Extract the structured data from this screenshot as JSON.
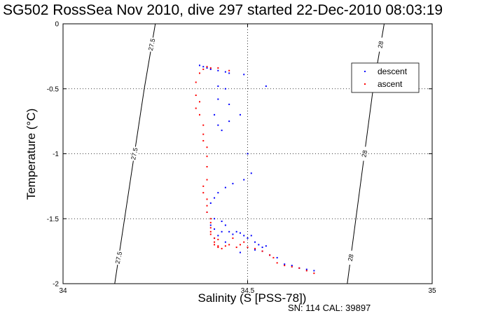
{
  "figure": {
    "title": "SG502 RossSea Nov 2010, dive 297 started 22-Dec-2010 08:03:19",
    "footer": "SN: 114  CAL: 39897"
  },
  "chart_data": {
    "type": "scatter",
    "title": "SG502 RossSea Nov 2010, dive 297 started 22-Dec-2010 08:03:19",
    "xlabel": "Salinity (S [PSS-78])",
    "ylabel": "Temperature (°C)",
    "xlim": [
      34,
      35
    ],
    "ylim": [
      -2,
      0
    ],
    "x_ticks": [
      34,
      34.5,
      35
    ],
    "x_tick_labels": [
      "34",
      "34.5",
      "35"
    ],
    "y_ticks": [
      -2,
      -1.5,
      -1,
      -0.5,
      0
    ],
    "y_tick_labels": [
      "-2",
      "-1.5",
      "-1",
      "-0.5",
      "0"
    ],
    "grid": true,
    "legend_position": "top-right",
    "series": [
      {
        "name": "descent",
        "color": "#0000ff",
        "x": [
          34.37,
          34.38,
          34.39,
          34.4,
          34.42,
          34.44,
          34.45,
          34.49,
          34.55,
          34.42,
          34.44,
          34.42,
          34.45,
          34.41,
          34.42,
          34.43,
          34.45,
          34.48,
          34.5,
          34.51,
          34.49,
          34.46,
          34.44,
          34.42,
          34.41,
          34.4,
          34.39,
          34.41,
          34.43,
          34.4,
          34.41,
          34.43,
          34.44,
          34.42,
          34.41,
          34.44,
          34.45,
          34.46,
          34.47,
          34.48,
          34.49,
          34.5,
          34.51,
          34.52,
          34.53,
          34.54,
          34.55,
          34.54,
          34.52,
          34.5,
          34.48,
          34.56,
          34.58,
          34.6,
          34.62,
          34.64,
          34.66,
          34.68
        ],
        "y": [
          -0.32,
          -0.33,
          -0.34,
          -0.35,
          -0.36,
          -0.37,
          -0.38,
          -0.39,
          -0.48,
          -0.48,
          -0.5,
          -0.58,
          -0.62,
          -0.7,
          -0.78,
          -0.82,
          -0.75,
          -0.7,
          -1.0,
          -1.15,
          -1.2,
          -1.23,
          -1.26,
          -1.3,
          -1.34,
          -1.38,
          -1.45,
          -1.5,
          -1.52,
          -1.55,
          -1.58,
          -1.6,
          -1.55,
          -1.63,
          -1.65,
          -1.68,
          -1.6,
          -1.62,
          -1.6,
          -1.61,
          -1.63,
          -1.65,
          -1.63,
          -1.68,
          -1.7,
          -1.72,
          -1.71,
          -1.75,
          -1.74,
          -1.72,
          -1.76,
          -1.78,
          -1.8,
          -1.85,
          -1.86,
          -1.88,
          -1.89,
          -1.9
        ]
      },
      {
        "name": "ascent",
        "color": "#ff0000",
        "x": [
          34.36,
          34.37,
          34.38,
          34.39,
          34.4,
          34.42,
          34.45,
          34.36,
          34.36,
          34.37,
          34.37,
          34.38,
          34.38,
          34.38,
          34.39,
          34.39,
          34.39,
          34.39,
          34.38,
          34.38,
          34.39,
          34.39,
          34.39,
          34.4,
          34.4,
          34.4,
          34.4,
          34.4,
          34.41,
          34.41,
          34.41,
          34.42,
          34.42,
          34.42,
          34.43,
          34.44,
          34.45,
          34.46,
          34.47,
          34.48,
          34.49,
          34.5,
          34.52,
          34.54,
          34.56,
          34.57,
          34.58,
          34.6,
          34.62,
          34.64,
          34.66,
          34.68
        ],
        "y": [
          -0.45,
          -0.38,
          -0.35,
          -0.33,
          -0.34,
          -0.34,
          -0.36,
          -0.55,
          -0.65,
          -0.6,
          -0.7,
          -0.78,
          -0.85,
          -0.9,
          -0.95,
          -1.02,
          -1.1,
          -1.2,
          -1.25,
          -1.3,
          -1.35,
          -1.4,
          -1.45,
          -1.5,
          -1.53,
          -1.57,
          -1.6,
          -1.62,
          -1.65,
          -1.68,
          -1.7,
          -1.72,
          -1.66,
          -1.71,
          -1.73,
          -1.71,
          -1.7,
          -1.65,
          -1.72,
          -1.7,
          -1.68,
          -1.72,
          -1.73,
          -1.75,
          -1.78,
          -1.8,
          -1.84,
          -1.86,
          -1.87,
          -1.88,
          -1.9,
          -1.92
        ]
      }
    ],
    "density_contours": [
      {
        "label": "27.5",
        "points": [
          [
            34.14,
            -2
          ],
          [
            34.22,
            -0.5
          ],
          [
            34.25,
            0
          ]
        ]
      },
      {
        "label": "28",
        "points": [
          [
            34.77,
            -2
          ],
          [
            34.84,
            -0.5
          ],
          [
            34.87,
            0
          ]
        ]
      }
    ]
  }
}
